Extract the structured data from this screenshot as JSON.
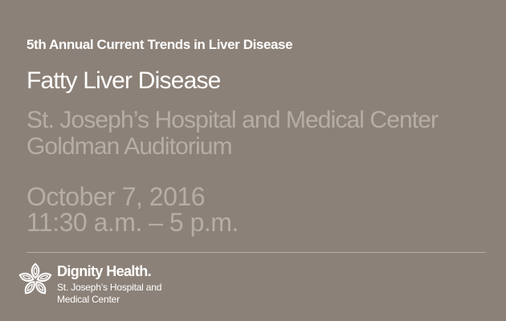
{
  "event": {
    "series": "5th Annual Current Trends in Liver Disease",
    "title": "Fatty Liver Disease",
    "venue_line1": "St. Joseph’s Hospital and Medical Center",
    "venue_line2": "Goldman Auditorium",
    "date": "October 7, 2016",
    "time": "11:30 a.m. – 5 p.m."
  },
  "brand": {
    "name": "Dignity Health.",
    "sub_line1": "St. Joseph’s Hospital and",
    "sub_line2": "Medical Center",
    "logo_icon": "dignity-health-flower-icon"
  },
  "colors": {
    "background": "#8c8178",
    "primary_text": "#ffffff",
    "muted_text": "#b6aea6"
  }
}
